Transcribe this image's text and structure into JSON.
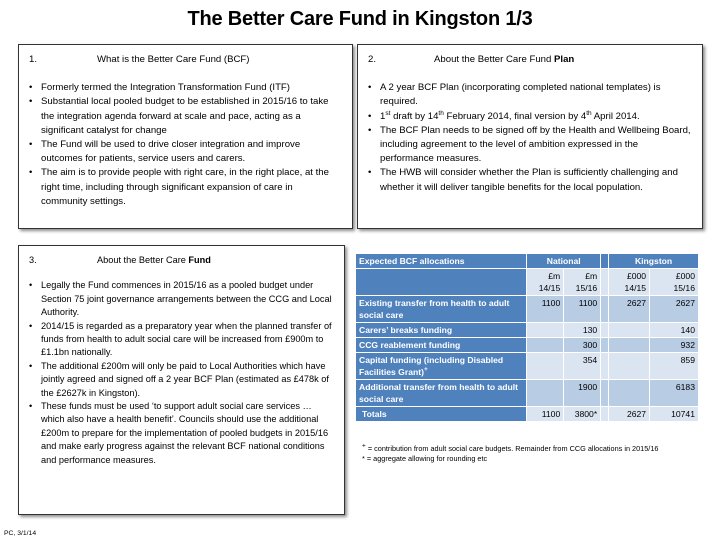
{
  "title": "The Better Care Fund in Kingston 1/3",
  "panel1": {
    "num": "1.",
    "heading": "What is the Better Care Fund (BCF)",
    "bullets": [
      "Formerly termed the Integration Transformation Fund (ITF)",
      "Substantial local pooled budget to be established in 2015/16 to take the integration agenda forward at scale and pace, acting as a significant catalyst for change",
      "The Fund will be used to drive closer integration and improve outcomes for patients, service users and carers.",
      "The aim is to provide people with right care, in the right place, at the right time, including through significant expansion of care in community settings."
    ]
  },
  "panel2": {
    "num": "2.",
    "heading_pre": "About the Better Care Fund ",
    "heading_bold": "Plan",
    "bullet1": "A 2 year BCF Plan (incorporating completed national templates) is required.",
    "bullet2": {
      "p1": "1",
      "s1": "st",
      "p2": " draft by 14",
      "s2": "th",
      "p3": " February 2014, final version by 4",
      "s3": "th",
      "p4": " April 2014."
    },
    "bullet3": "The BCF Plan needs to be signed off by the Health and Wellbeing Board, including agreement to the level of ambition expressed in the performance measures.",
    "bullet4": "The HWB will consider whether the Plan is sufficiently challenging and whether it will deliver tangible benefits for the local population."
  },
  "panel3": {
    "num": "3.",
    "heading_pre": "About the Better Care ",
    "heading_bold": "Fund",
    "bullets": [
      "Legally the Fund commences in 2015/16 as a pooled budget under Section 75 joint governance arrangements between the CCG and Local Authority.",
      "2014/15 is regarded as a preparatory year when the planned transfer of funds from health to adult social care will be increased from £900m to £1.1bn nationally.",
      "The additional £200m will only be paid to Local Authorities which have jointly agreed and signed off a 2 year BCF Plan (estimated as £478k of the £2627k in Kingston).",
      "These funds must be used ‘to support adult social care services … which also have a health benefit’.  Councils should use the additional £200m to prepare for the implementation of pooled budgets in 2015/16 and make early progress against the relevant BCF national conditions and performance measures."
    ]
  },
  "table": {
    "header_label": "Expected BCF allocations",
    "group_national": "National",
    "group_kingston": "Kingston",
    "units": [
      {
        "u": "£m",
        "y": "14/15"
      },
      {
        "u": "£m",
        "y": "15/16"
      },
      {
        "u": "£000",
        "y": "14/15"
      },
      {
        "u": "£000",
        "y": "15/16"
      }
    ],
    "rows": [
      {
        "label": "Existing transfer from health to adult social care",
        "nat1415": "1100",
        "nat1516": "1100",
        "kin1415": "2627",
        "kin1516": "2627"
      },
      {
        "label": "Carers’ breaks funding",
        "nat1415": "",
        "nat1516": "130",
        "kin1415": "",
        "kin1516": "140"
      },
      {
        "label": "CCG reablement funding",
        "nat1415": "",
        "nat1516": "300",
        "kin1415": "",
        "kin1516": "932"
      },
      {
        "label": "Capital funding (including Disabled Facilities Grant)",
        "label_sup": "+",
        "nat1415": "",
        "nat1516": "354",
        "kin1415": "",
        "kin1516": "859"
      },
      {
        "label": "Additional transfer from health to adult social care",
        "nat1415": "",
        "nat1516": "1900",
        "kin1415": "",
        "kin1516": "6183"
      },
      {
        "label": "Totals",
        "nat1415": "1100",
        "nat1516": "3800*",
        "kin1415": "2627",
        "kin1516": "10741"
      }
    ]
  },
  "footnotes": {
    "sup": "+",
    "line1": " = contribution from adult social care budgets.  Remainder from CCG allocations in 2015/16",
    "line2": "* = aggregate allowing for rounding etc"
  },
  "footer": "PC, 3/1/14"
}
